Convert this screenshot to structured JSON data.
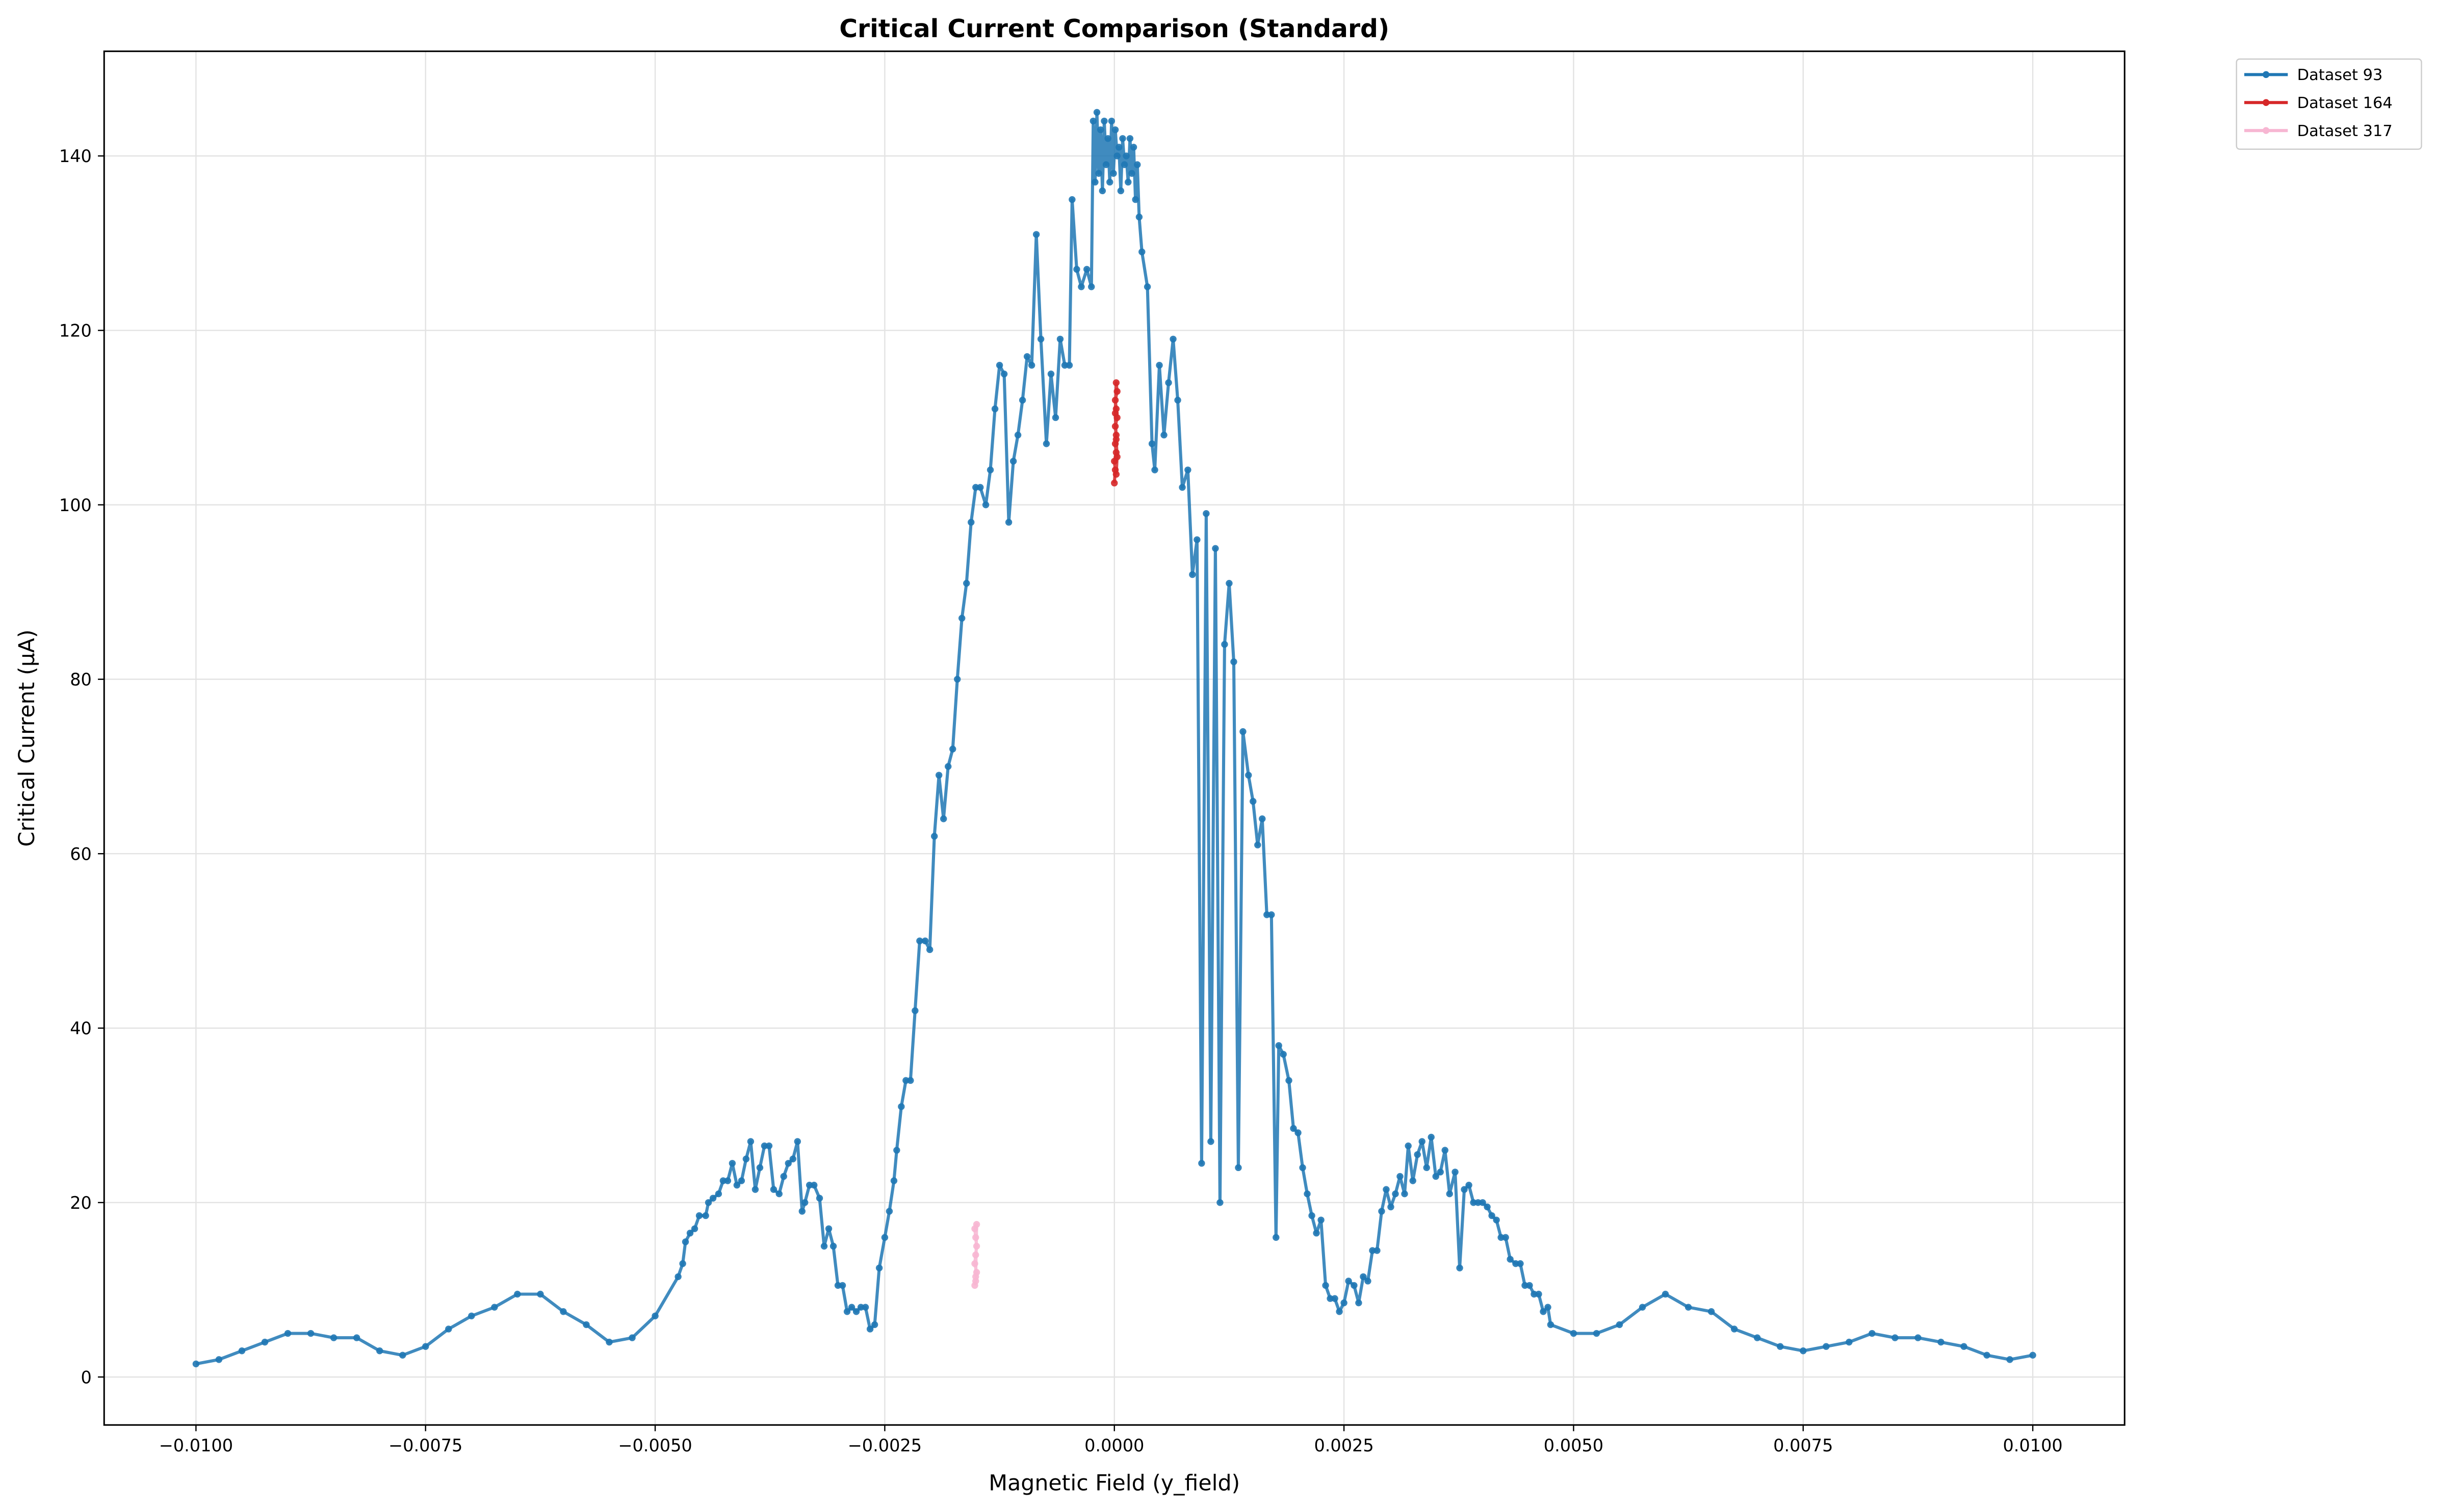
{
  "chart_data": {
    "type": "line",
    "title": "Critical Current Comparison (Standard)",
    "x_label": "Magnetic Field (y_field)",
    "y_label": "Critical Current (μA)",
    "xlim": [
      -0.011,
      0.011
    ],
    "ylim": [
      -5.5,
      152
    ],
    "xticks": [
      {
        "value": -0.01,
        "label": "−0.0100"
      },
      {
        "value": -0.0075,
        "label": "−0.0075"
      },
      {
        "value": -0.005,
        "label": "−0.0050"
      },
      {
        "value": -0.0025,
        "label": "−0.0025"
      },
      {
        "value": 0,
        "label": "0.0000"
      },
      {
        "value": 0.0025,
        "label": "0.0025"
      },
      {
        "value": 0.005,
        "label": "0.0050"
      },
      {
        "value": 0.0075,
        "label": "0.0075"
      },
      {
        "value": 0.01,
        "label": "0.0100"
      }
    ],
    "yticks": [
      0,
      20,
      40,
      60,
      80,
      100,
      120,
      140
    ],
    "grid": true,
    "legend": "outside-upper-right",
    "series": [
      {
        "name": "Dataset 93",
        "color": "#1f77b4",
        "x": [
          -0.01,
          -0.00975,
          -0.0095,
          -0.00925,
          -0.009,
          -0.00875,
          -0.0085,
          -0.00825,
          -0.008,
          -0.00775,
          -0.0075,
          -0.00725,
          -0.007,
          -0.00675,
          -0.0065,
          -0.00625,
          -0.006,
          -0.00575,
          -0.0055,
          -0.00525,
          -0.005,
          -0.00475,
          -0.0047,
          -0.00467,
          -0.00462,
          -0.00457,
          -0.00452,
          -0.00445,
          -0.00442,
          -0.00437,
          -0.00431,
          -0.00426,
          -0.00421,
          -0.00416,
          -0.00411,
          -0.00406,
          -0.00401,
          -0.00396,
          -0.00391,
          -0.00386,
          -0.00381,
          -0.00376,
          -0.00371,
          -0.00365,
          -0.0036,
          -0.00355,
          -0.0035,
          -0.00345,
          -0.0034,
          -0.00337,
          -0.00332,
          -0.00327,
          -0.00321,
          -0.00316,
          -0.00311,
          -0.00306,
          -0.00301,
          -0.00296,
          -0.00291,
          -0.00286,
          -0.00281,
          -0.00276,
          -0.00271,
          -0.00266,
          -0.00261,
          -0.00256,
          -0.0025,
          -0.00245,
          -0.0024,
          -0.00237,
          -0.00232,
          -0.00227,
          -0.00222,
          -0.00217,
          -0.00212,
          -0.00206,
          -0.00201,
          -0.00196,
          -0.00191,
          -0.00186,
          -0.00181,
          -0.00176,
          -0.00171,
          -0.00166,
          -0.00161,
          -0.00156,
          -0.00151,
          -0.00146,
          -0.0014,
          -0.00135,
          -0.0013,
          -0.00125,
          -0.0012,
          -0.00115,
          -0.0011,
          -0.00105,
          -0.001,
          -0.00095,
          -0.0009,
          -0.00085,
          -0.0008,
          -0.00074,
          -0.00069,
          -0.00064,
          -0.00059,
          -0.00054,
          -0.00049,
          -0.00046,
          -0.00041,
          -0.00036,
          -0.0003,
          -0.00025,
          -0.00023,
          -0.00021,
          -0.00019,
          -0.00017,
          -0.00015,
          -0.00013,
          -0.00011,
          -9e-05,
          -7e-05,
          -5e-05,
          -3e-05,
          -1e-05,
          1e-05,
          3e-05,
          5e-05,
          7e-05,
          9e-05,
          0.00011,
          0.00013,
          0.00015,
          0.00017,
          0.00019,
          0.00021,
          0.00023,
          0.00025,
          0.00027,
          0.0003,
          0.00036,
          0.00041,
          0.00044,
          0.00049,
          0.00054,
          0.00059,
          0.00064,
          0.00069,
          0.00074,
          0.0008,
          0.00085,
          0.0009,
          0.00095,
          0.001,
          0.00105,
          0.0011,
          0.00115,
          0.0012,
          0.00125,
          0.0013,
          0.00135,
          0.0014,
          0.00146,
          0.00151,
          0.00156,
          0.00161,
          0.00166,
          0.00171,
          0.00176,
          0.00179,
          0.00184,
          0.0019,
          0.00195,
          0.002,
          0.00205,
          0.0021,
          0.00215,
          0.0022,
          0.00225,
          0.0023,
          0.00235,
          0.0024,
          0.00245,
          0.0025,
          0.00255,
          0.00261,
          0.00266,
          0.00271,
          0.00276,
          0.00281,
          0.00286,
          0.00291,
          0.00296,
          0.00301,
          0.00306,
          0.00311,
          0.00316,
          0.0032,
          0.00325,
          0.0033,
          0.00335,
          0.0034,
          0.00345,
          0.0035,
          0.00355,
          0.0036,
          0.00365,
          0.00371,
          0.00376,
          0.00381,
          0.00386,
          0.00391,
          0.00396,
          0.00401,
          0.00406,
          0.00411,
          0.00416,
          0.00421,
          0.00426,
          0.00431,
          0.00437,
          0.00442,
          0.00447,
          0.00452,
          0.00457,
          0.00462,
          0.00467,
          0.00472,
          0.00475,
          0.005,
          0.00525,
          0.0055,
          0.00575,
          0.006,
          0.00625,
          0.0065,
          0.00675,
          0.007,
          0.00725,
          0.0075,
          0.00775,
          0.008,
          0.00825,
          0.0085,
          0.00875,
          0.009,
          0.00925,
          0.0095,
          0.00975,
          0.01
        ],
        "values": [
          1.5,
          2,
          3,
          4,
          5,
          5,
          4.5,
          4.5,
          3,
          2.5,
          3.5,
          5.5,
          7,
          8,
          9.5,
          9.5,
          7.5,
          6,
          4,
          4.5,
          7,
          11.5,
          13,
          15.5,
          16.5,
          17,
          18.5,
          18.5,
          20,
          20.5,
          21,
          22.5,
          22.5,
          24.5,
          22,
          22.5,
          25,
          27,
          21.5,
          24,
          26.5,
          26.5,
          21.5,
          21,
          23,
          24.5,
          25,
          27,
          19,
          20,
          22,
          22,
          20.5,
          15,
          17,
          15,
          10.5,
          10.5,
          7.5,
          8,
          7.5,
          8,
          8,
          5.5,
          6,
          12.5,
          16,
          19,
          22.5,
          26,
          31,
          34,
          34,
          42,
          50,
          50,
          49,
          62,
          69,
          64,
          70,
          72,
          80,
          87,
          91,
          98,
          102,
          102,
          100,
          104,
          111,
          116,
          115,
          98,
          105,
          108,
          112,
          117,
          116,
          131,
          119,
          107,
          115,
          110,
          119,
          116,
          116,
          135,
          127,
          125,
          127,
          125,
          144,
          137,
          145,
          138,
          143,
          136,
          144,
          139,
          142,
          137,
          144,
          138,
          143,
          140,
          141,
          136,
          142,
          139,
          140,
          137,
          142,
          138,
          141,
          135,
          139,
          133,
          129,
          125,
          107,
          104,
          116,
          108,
          114,
          119,
          112,
          102,
          104,
          92,
          96,
          24.5,
          99,
          27,
          95,
          20,
          84,
          91,
          82,
          24,
          74,
          69,
          66,
          61,
          64,
          53,
          53,
          16,
          38,
          37,
          34,
          28.5,
          28,
          24,
          21,
          18.5,
          16.5,
          18,
          10.5,
          9,
          9,
          7.5,
          8.5,
          11,
          10.5,
          8.5,
          11.5,
          11,
          14.5,
          14.5,
          19,
          21.5,
          19.5,
          21,
          23,
          21,
          26.5,
          22.5,
          25.5,
          27,
          24,
          27.5,
          23,
          23.5,
          26,
          21,
          23.5,
          12.5,
          21.5,
          22,
          20,
          20,
          20,
          19.5,
          18.5,
          18,
          16,
          16,
          13.5,
          13,
          13,
          10.5,
          10.5,
          9.5,
          9.5,
          7.5,
          8,
          6,
          5,
          5,
          6,
          8,
          9.5,
          8,
          7.5,
          5.5,
          4.5,
          3.5,
          3,
          3.5,
          4,
          5,
          4.5,
          4.5,
          4,
          3.5,
          2.5,
          2,
          2.5
        ]
      },
      {
        "name": "Dataset 164",
        "color": "#d62728",
        "x": [
          0,
          1e-05,
          0,
          2e-05,
          1e-05,
          2e-05,
          1e-05,
          3e-05,
          2e-05,
          1e-05,
          3e-05,
          2e-05,
          1e-05,
          2e-05,
          3e-05,
          2e-05
        ],
        "values": [
          102.5,
          104,
          105,
          106,
          107,
          108,
          109,
          110,
          111,
          112,
          113,
          114,
          110.5,
          107.5,
          105.5,
          103.5
        ]
      },
      {
        "name": "Dataset 317",
        "color": "#f7b6d2",
        "x": [
          -0.00152,
          -0.00151,
          -0.0015,
          -0.00152,
          -0.00151,
          -0.0015,
          -0.00151,
          -0.00152,
          -0.0015,
          -0.00151
        ],
        "values": [
          10.5,
          11,
          12,
          13,
          14,
          15,
          16,
          17,
          17.5,
          11.5
        ]
      }
    ]
  }
}
